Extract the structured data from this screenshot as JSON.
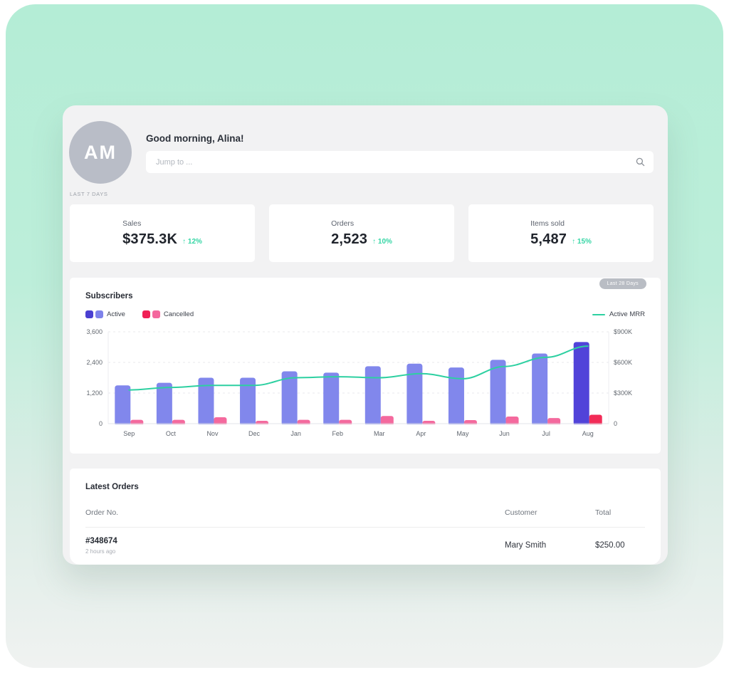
{
  "header": {
    "avatar_initials": "AM",
    "greeting": "Good morning, Alina!",
    "search_placeholder": "Jump to ..."
  },
  "period_label": "LAST 7 DAYS",
  "stats": [
    {
      "label": "Sales",
      "value": "$375.3K",
      "arrow": "↑",
      "change": "12%"
    },
    {
      "label": "Orders",
      "value": "2,523",
      "arrow": "↑",
      "change": "10%"
    },
    {
      "label": "Items sold",
      "value": "5,487",
      "arrow": "↑",
      "change": "15%"
    }
  ],
  "subscribers": {
    "title": "Subscribers",
    "range_badge": "Last 28 Days",
    "legend": [
      {
        "label": "Active",
        "colors": [
          "#4a3fd1",
          "#7e82ea"
        ]
      },
      {
        "label": "Cancelled",
        "colors": [
          "#f02055",
          "#f4679d"
        ]
      }
    ],
    "line_legend": {
      "label": "Active MRR",
      "color": "#2dd0a1"
    }
  },
  "chart_data": {
    "type": "bar",
    "categories": [
      "Sep",
      "Oct",
      "Nov",
      "Dec",
      "Jan",
      "Feb",
      "Mar",
      "Apr",
      "May",
      "Jun",
      "Jul",
      "Aug"
    ],
    "series": [
      {
        "name": "Active",
        "values": [
          1500,
          1600,
          1800,
          1800,
          2050,
          2000,
          2250,
          2350,
          2200,
          2500,
          2750,
          3200
        ],
        "color": "#8187ec",
        "last_color": "#5143d9"
      },
      {
        "name": "Cancelled",
        "values": [
          150,
          150,
          250,
          110,
          150,
          150,
          300,
          110,
          140,
          280,
          220,
          350
        ],
        "color": "#f4699d",
        "last_color": "#f22b57"
      }
    ],
    "line_series": {
      "name": "Active MRR",
      "axis": "right",
      "values_k_usd": [
        330,
        355,
        375,
        375,
        450,
        460,
        450,
        490,
        440,
        560,
        650,
        760
      ],
      "color": "#2dd0a1"
    },
    "title": "Subscribers",
    "xlabel": "",
    "ylabel": "",
    "left_axis": {
      "ticks": [
        "3,600",
        "2,400",
        "1,200",
        "0"
      ],
      "max": 3600
    },
    "right_axis": {
      "ticks": [
        "$900K",
        "$600K",
        "$300K",
        "0"
      ],
      "max": 900
    },
    "grid": "dashed-horizontal",
    "legend_position": "top-left"
  },
  "orders": {
    "title": "Latest Orders",
    "columns": [
      "Order No.",
      "Customer",
      "Total"
    ],
    "rows": [
      {
        "order_no": "#348674",
        "time": "2 hours ago",
        "customer": "Mary Smith",
        "total": "$250.00"
      }
    ]
  },
  "colors": {
    "accent_green": "#35d6a5",
    "bg_mint_top": "#b4edd6",
    "bg_bottom": "#f0f2f1",
    "panel_bg": "#f2f2f3",
    "avatar_bg": "#b9bdc7",
    "badge_bg": "#b9bdc4"
  }
}
